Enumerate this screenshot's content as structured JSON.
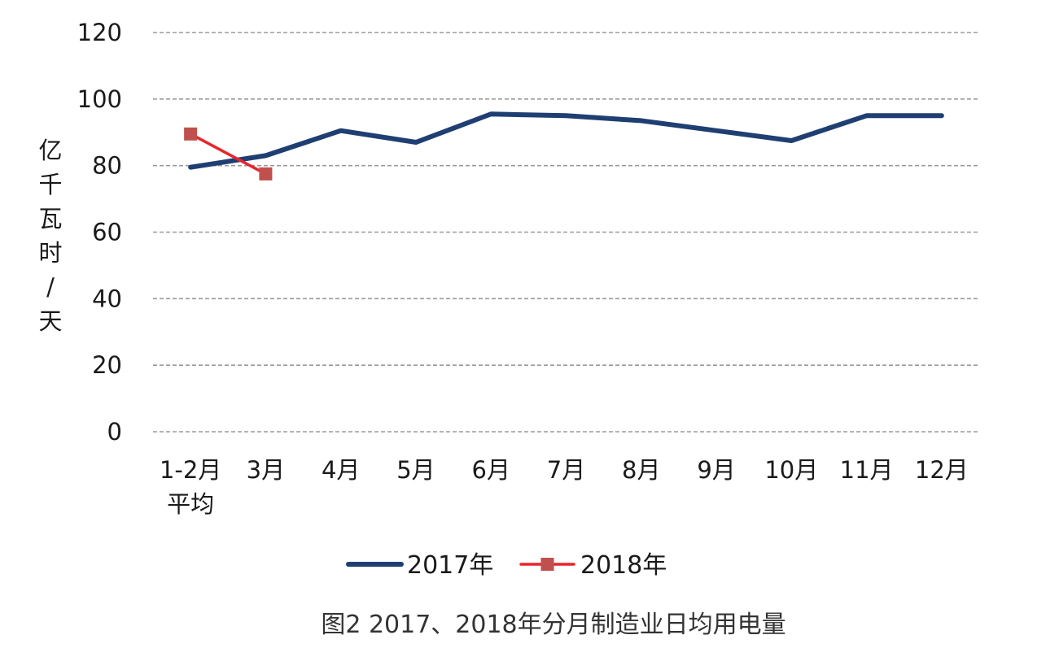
{
  "chart_data": {
    "type": "line",
    "title": "图2 2017、2018年分月制造业日均用电量",
    "xlabel": "",
    "ylabel": "亿千瓦时/天",
    "ylim": [
      0,
      120
    ],
    "yticks": [
      0,
      20,
      40,
      60,
      80,
      100,
      120
    ],
    "grid": true,
    "legend_position": "bottom",
    "categories": [
      [
        "1-2月",
        "平均"
      ],
      [
        "3月"
      ],
      [
        "4月"
      ],
      [
        "5月"
      ],
      [
        "6月"
      ],
      [
        "7月"
      ],
      [
        "8月"
      ],
      [
        "9月"
      ],
      [
        "10月"
      ],
      [
        "11月"
      ],
      [
        "12月"
      ]
    ],
    "series": [
      {
        "name": "2017年",
        "color": "#1f3f73",
        "marker": "none",
        "values": [
          79.5,
          83,
          90.5,
          87,
          95.5,
          95,
          93.5,
          90.5,
          87.5,
          95,
          95
        ]
      },
      {
        "name": "2018年",
        "color": "#e8252b",
        "marker_color": "#c0504d",
        "marker": "square",
        "values": [
          89.5,
          77.5,
          null,
          null,
          null,
          null,
          null,
          null,
          null,
          null,
          null
        ]
      }
    ]
  }
}
